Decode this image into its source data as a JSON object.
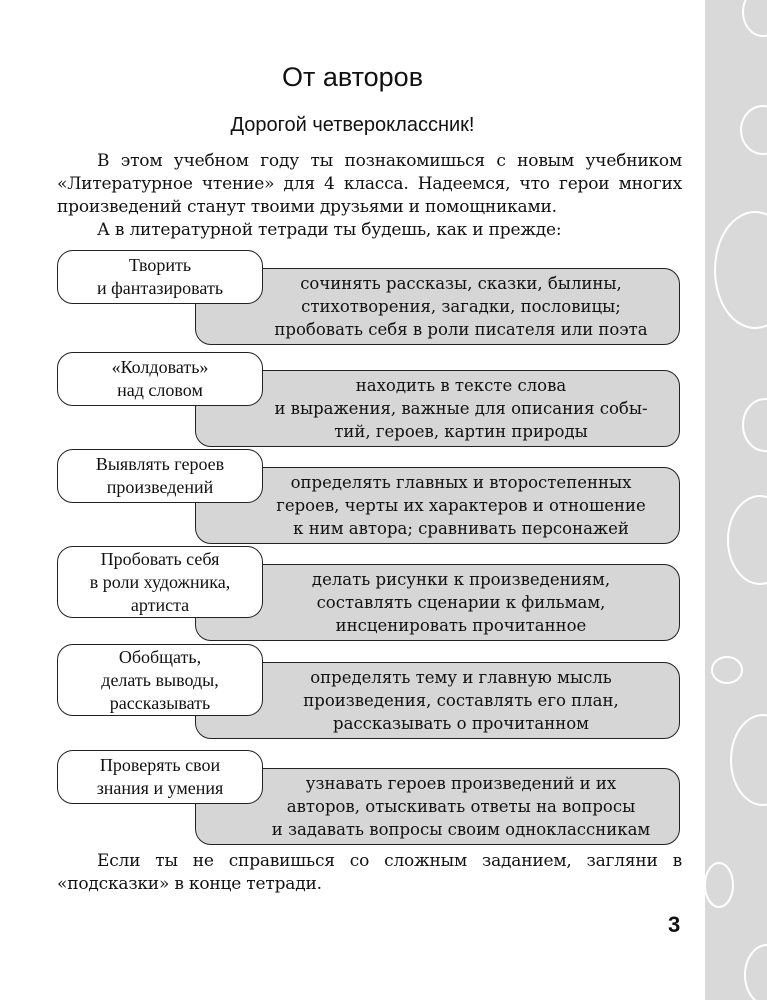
{
  "title": "От авторов",
  "subtitle": "Дорогой четвероклассник!",
  "intro": [
    "В этом учебном году ты познакомишься с новым учебником «Литературное чтение» для 4 класса. Надеемся, что герои многих произведений станут твоими друзьями и помощниками.",
    "А в литературной тетради ты будешь, как и прежде:"
  ],
  "rows": [
    {
      "skill": "Творить\nи фантазировать",
      "details": "сочинять рассказы, сказки, былины,\nстихотворения, загадки, пословицы;\nпробовать себя в роли писателя или поэта"
    },
    {
      "skill": "«Колдовать»\nнад словом",
      "details": "находить в тексте слова\nи выражения, важные для описания собы-\nтий, героев, картин природы"
    },
    {
      "skill": "Выявлять героев\nпроизведений",
      "details": "определять главных и второстепенных\nгероев, черты их характеров и отношение\nк ним автора; сравнивать персонажей"
    },
    {
      "skill": "Пробовать себя\nв роли художника,\nартиста",
      "details": "делать рисунки к произведениям,\nсоставлять сценарии к фильмам,\nинсценировать прочитанное"
    },
    {
      "skill": "Обобщать,\nделать выводы,\nрассказывать",
      "details": "определять тему и главную мысль\nпроизведения, составлять его план,\nрассказывать о прочитанном"
    },
    {
      "skill": "Проверять свои\nзнания и умения",
      "details": "узнавать героев произведений и их\nавторов, отыскивать ответы на вопросы\nи задавать вопросы своим одноклассникам"
    }
  ],
  "outro": "Если ты не справишься со сложным заданием, загляни в «подсказки» в конце тетради.",
  "page_number": "3",
  "colors": {
    "detail_box": "#d6d6d6",
    "side_strip": "#d9d9d9"
  }
}
